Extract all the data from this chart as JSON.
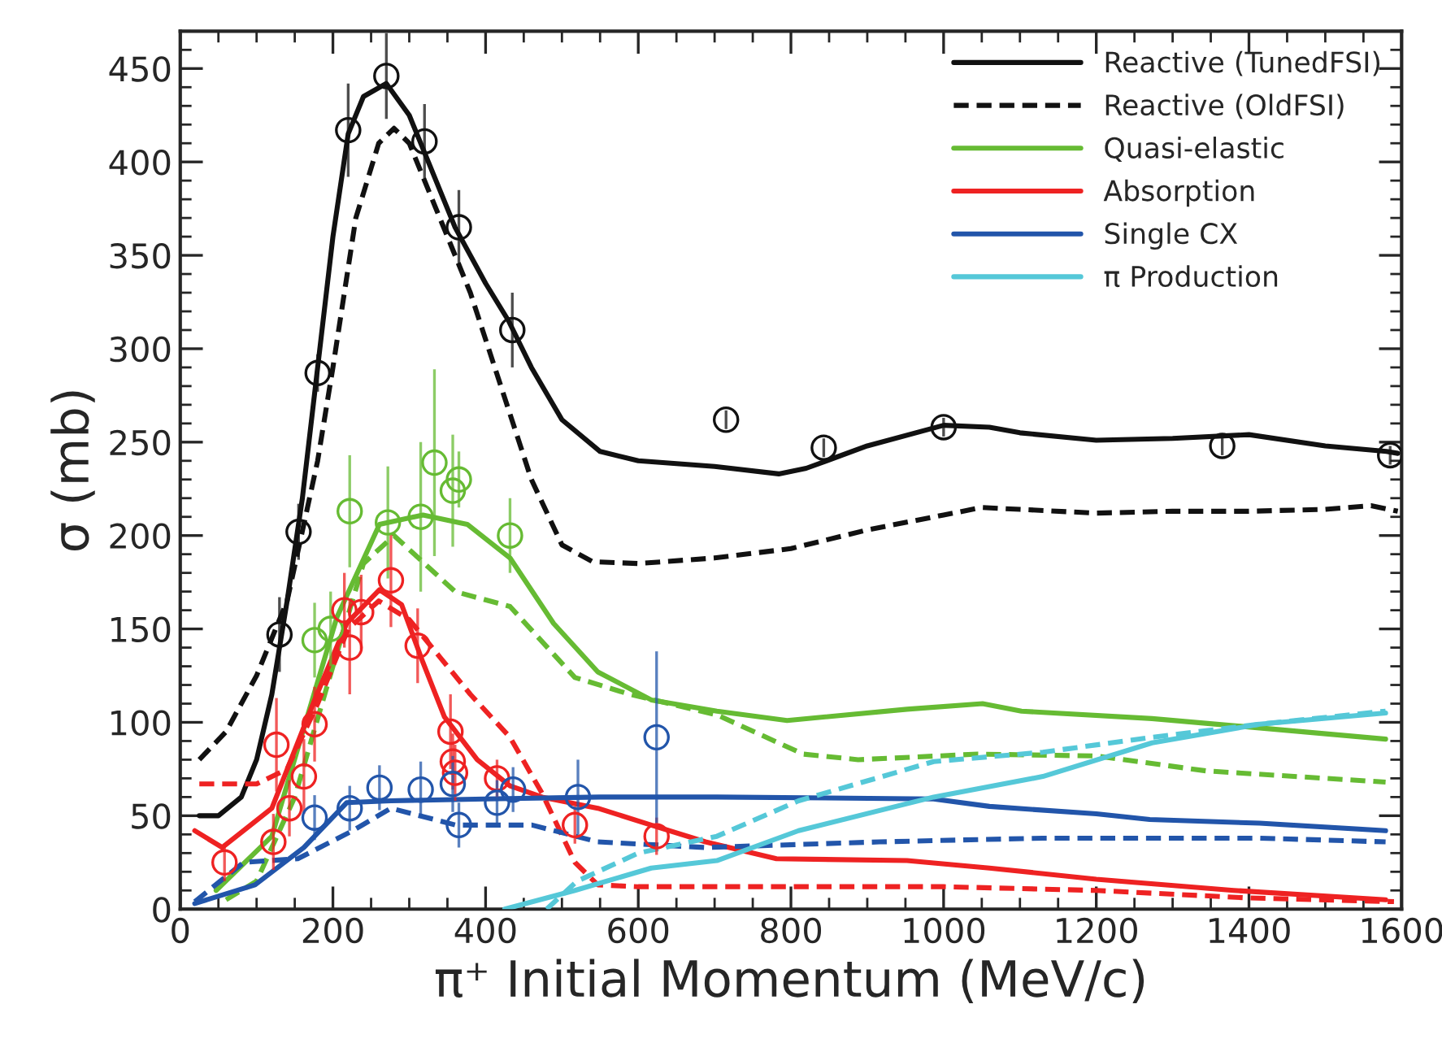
{
  "chart_data": {
    "type": "line",
    "xlabel": "π⁺ Initial Momentum (MeV/c)",
    "ylabel": "σ (mb)",
    "xlim": [
      0,
      1600
    ],
    "ylim": [
      0,
      470
    ],
    "xticks": [
      0,
      200,
      400,
      600,
      800,
      1000,
      1200,
      1400,
      1600
    ],
    "yticks": [
      0,
      50,
      100,
      150,
      200,
      250,
      300,
      350,
      400,
      450
    ],
    "grid": false,
    "legend": "top right",
    "series": [
      {
        "name": "Reactive (TunedFSI)",
        "line_style": "solid",
        "color": "#111111",
        "x": [
          25,
          50,
          80,
          100,
          120,
          140,
          160,
          180,
          200,
          220,
          240,
          270,
          300,
          330,
          360,
          400,
          430,
          460,
          500,
          550,
          600,
          700,
          784,
          820,
          900,
          1000,
          1060,
          1100,
          1200,
          1300,
          1400,
          1500,
          1580,
          1595
        ],
        "values": [
          50,
          50,
          60,
          80,
          115,
          165,
          220,
          290,
          360,
          415,
          435,
          442,
          425,
          395,
          365,
          335,
          315,
          290,
          262,
          245,
          240,
          237,
          233,
          236,
          248,
          259,
          258,
          255,
          251,
          252,
          254,
          248,
          245,
          244
        ]
      },
      {
        "name": "Reactive (OldFSI)",
        "line_style": "dashed",
        "color": "#111111",
        "x": [
          25,
          60,
          100,
          140,
          180,
          200,
          230,
          260,
          280,
          300,
          340,
          380,
          420,
          460,
          500,
          540,
          600,
          700,
          800,
          900,
          1000,
          1050,
          1100,
          1200,
          1300,
          1400,
          1500,
          1560,
          1595
        ],
        "values": [
          80,
          95,
          125,
          165,
          240,
          290,
          370,
          410,
          418,
          410,
          370,
          330,
          280,
          230,
          195,
          186,
          185,
          188,
          193,
          203,
          211,
          215,
          214,
          212,
          213,
          213,
          214,
          216,
          213
        ]
      },
      {
        "name": "Quasi-elastic",
        "line_style": "solid",
        "color": "#66bb33",
        "x": [
          47,
          120,
          162,
          205,
          261,
          318,
          376,
          432,
          489,
          547,
          617,
          703,
          795,
          952,
          1051,
          1102,
          1273,
          1414,
          1579
        ],
        "values": [
          10,
          39,
          97,
          156,
          206,
          211,
          206,
          188,
          153,
          127,
          112,
          106,
          101,
          107,
          110,
          106,
          102,
          97,
          91
        ]
      },
      {
        "line_style": "dashed",
        "color": "#66bb33",
        "x": [
          60,
          100,
          150,
          200,
          240,
          280,
          320,
          360,
          432,
          517,
          589,
          703,
          816,
          888,
          1045,
          1200,
          1344,
          1579
        ],
        "values": [
          5,
          15,
          60,
          130,
          185,
          200,
          185,
          170,
          162,
          124,
          115,
          104,
          83,
          80,
          83,
          82,
          74,
          68
        ]
      },
      {
        "name": "Absorption",
        "line_style": "solid",
        "color": "#ee2222",
        "x": [
          19,
          55,
          120,
          176,
          218,
          261,
          290,
          318,
          346,
          389,
          432,
          474,
          547,
          617,
          688,
          781,
          952,
          1060,
          1200,
          1380,
          1579
        ],
        "values": [
          42,
          33,
          54,
          112,
          153,
          171,
          163,
          132,
          103,
          80,
          66,
          60,
          54,
          45,
          36,
          27,
          26,
          22,
          16,
          10,
          5
        ]
      },
      {
        "line_style": "dashed",
        "color": "#ee2222",
        "x": [
          25,
          100,
          140,
          180,
          220,
          260,
          300,
          340,
          380,
          432,
          474,
          517,
          547,
          600,
          700,
          1000,
          1200,
          1400,
          1590
        ],
        "values": [
          67,
          67,
          75,
          110,
          150,
          165,
          155,
          135,
          115,
          92,
          62,
          25,
          13,
          12,
          12,
          12,
          10,
          6,
          4
        ]
      },
      {
        "name": "Single CX",
        "line_style": "solid",
        "color": "#2255aa",
        "x": [
          19,
          98,
          162,
          218,
          276,
          400,
          550,
          703,
          987,
          1060,
          1200,
          1270,
          1414,
          1579
        ],
        "values": [
          3,
          13,
          33,
          57,
          58,
          59,
          60,
          60,
          59,
          55,
          51,
          48,
          46,
          42
        ]
      },
      {
        "line_style": "dashed",
        "color": "#2255aa",
        "x": [
          19,
          83,
          154,
          226,
          276,
          361,
          461,
          547,
          688,
          916,
          1130,
          1414,
          1579
        ],
        "values": [
          4,
          25,
          27,
          42,
          54,
          45,
          45,
          36,
          33,
          36,
          38,
          38,
          36
        ]
      },
      {
        "name": "π Production",
        "line_style": "solid",
        "color": "#55c8d8",
        "x": [
          425,
          517,
          617,
          703,
          810,
          987,
          1130,
          1273,
          1414,
          1579
        ],
        "values": [
          0,
          10,
          22,
          26,
          42,
          60,
          71,
          89,
          99,
          105
        ]
      },
      {
        "line_style": "dashed",
        "color": "#55c8d8",
        "x": [
          480,
          520,
          600,
          703,
          810,
          987,
          1130,
          1273,
          1414,
          1579
        ],
        "values": [
          0,
          15,
          30,
          39,
          58,
          79,
          84,
          92,
          99,
          106
        ]
      },
      {
        "type": "scatter",
        "marker": "circle",
        "color": "#111111",
        "x": [
          130,
          155,
          180,
          220,
          270,
          320,
          365,
          435,
          715,
          843,
          1000,
          1365,
          1585
        ],
        "values": [
          147,
          202,
          287,
          417,
          446,
          411,
          365,
          310,
          262,
          247,
          258,
          248,
          243
        ],
        "errors": [
          20,
          15,
          10,
          25,
          23,
          20,
          20,
          20,
          5,
          5,
          5,
          5,
          5
        ]
      },
      {
        "type": "scatter",
        "marker": "circle",
        "color": "#66bb33",
        "x": [
          176,
          197,
          222,
          272,
          315,
          333,
          357,
          365,
          432
        ],
        "values": [
          144,
          150,
          213,
          207,
          210,
          239,
          224,
          230,
          200
        ],
        "errors": [
          20,
          20,
          30,
          30,
          40,
          50,
          30,
          15,
          20
        ]
      },
      {
        "type": "scatter",
        "marker": "circle",
        "color": "#ee2222",
        "x": [
          58,
          122,
          126,
          143,
          162,
          176,
          215,
          222,
          237,
          276,
          311,
          354,
          357,
          360,
          415,
          517,
          624
        ],
        "values": [
          25,
          36,
          88,
          54,
          71,
          99,
          160,
          140,
          159,
          176,
          141,
          95,
          79,
          73,
          70,
          45,
          39
        ],
        "errors": [
          10,
          15,
          25,
          15,
          20,
          20,
          20,
          25,
          20,
          25,
          20,
          20,
          15,
          15,
          10,
          10,
          10
        ]
      },
      {
        "type": "scatter",
        "marker": "circle",
        "color": "#2255aa",
        "x": [
          176,
          222,
          261,
          315,
          357,
          365,
          415,
          436,
          521,
          624
        ],
        "values": [
          49,
          54,
          65,
          64,
          67,
          45,
          57,
          64,
          60,
          92
        ],
        "errors": [
          12,
          12,
          12,
          15,
          15,
          12,
          12,
          12,
          20,
          46
        ]
      }
    ]
  }
}
